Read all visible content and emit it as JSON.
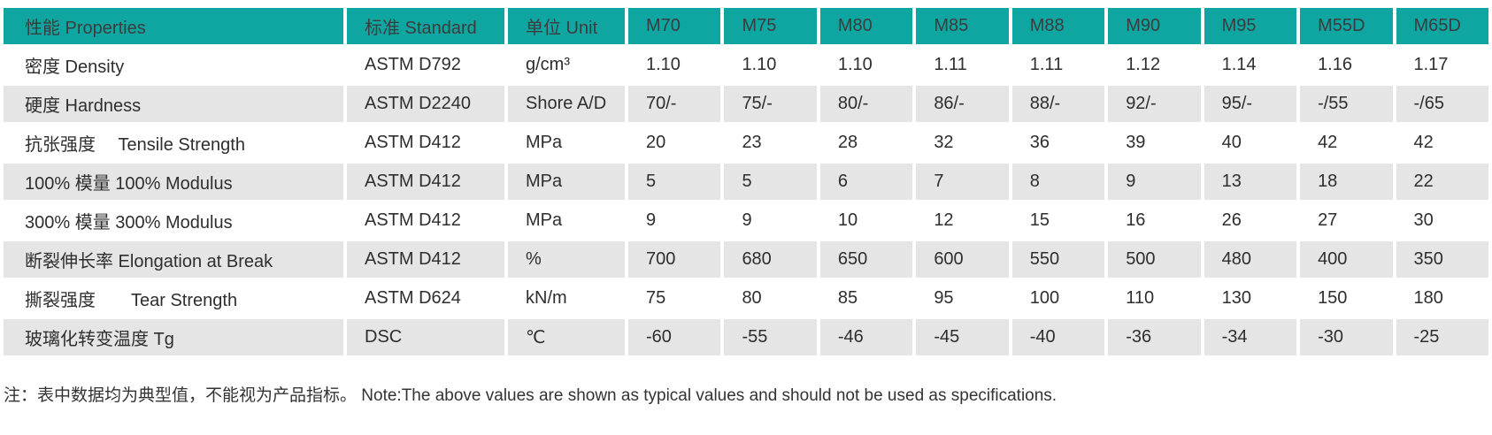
{
  "colors": {
    "header_bg": "#0fa6a2",
    "header_text": "#3c3c3c",
    "alt_row_bg": "#e5e5e5"
  },
  "table": {
    "columns": [
      "性能 Properties",
      "标准 Standard",
      "单位 Unit",
      "M70",
      "M75",
      "M80",
      "M85",
      "M88",
      "M90",
      "M95",
      "M55D",
      "M65D"
    ],
    "rows": [
      {
        "property": "密度 Density",
        "standard": "ASTM D792",
        "unit": "g/cm³",
        "values": [
          "1.10",
          "1.10",
          "1.10",
          "1.11",
          "1.11",
          "1.12",
          "1.14",
          "1.16",
          "1.17"
        ]
      },
      {
        "property": "硬度 Hardness",
        "standard": "ASTM D2240",
        "unit": "Shore A/D",
        "values": [
          "70/-",
          "75/-",
          "80/-",
          "86/-",
          "88/-",
          "92/-",
          "95/-",
          "-/55",
          "-/65"
        ]
      },
      {
        "property": "抗张强度　 Tensile Strength",
        "standard": "ASTM D412",
        "unit": "MPa",
        "values": [
          "20",
          "23",
          "28",
          "32",
          "36",
          "39",
          "40",
          "42",
          "42"
        ]
      },
      {
        "property": "100% 模量 100% Modulus",
        "standard": "ASTM D412",
        "unit": "MPa",
        "values": [
          "5",
          "5",
          "6",
          "7",
          "8",
          "9",
          "13",
          "18",
          "22"
        ]
      },
      {
        "property": "300% 模量 300% Modulus",
        "standard": "ASTM D412",
        "unit": "MPa",
        "values": [
          "9",
          "9",
          "10",
          "12",
          "15",
          "16",
          "26",
          "27",
          "30"
        ]
      },
      {
        "property": "断裂伸长率 Elongation at Break",
        "standard": "ASTM D412",
        "unit": "%",
        "values": [
          "700",
          "680",
          "650",
          "600",
          "550",
          "500",
          "480",
          "400",
          "350"
        ]
      },
      {
        "property": "撕裂强度　　Tear Strength",
        "standard": "ASTM D624",
        "unit": "kN/m",
        "values": [
          "75",
          "80",
          "85",
          "95",
          "100",
          "110",
          "130",
          "150",
          "180"
        ]
      },
      {
        "property": "玻璃化转变温度 Tg",
        "standard": "DSC",
        "unit": "℃",
        "values": [
          "-60",
          "-55",
          "-46",
          "-45",
          "-40",
          "-36",
          "-34",
          "-30",
          "-25"
        ]
      }
    ]
  },
  "note": "注：表中数据均为典型值，不能视为产品指标。 Note:The above values are shown as typical values and should not be used as specifications."
}
